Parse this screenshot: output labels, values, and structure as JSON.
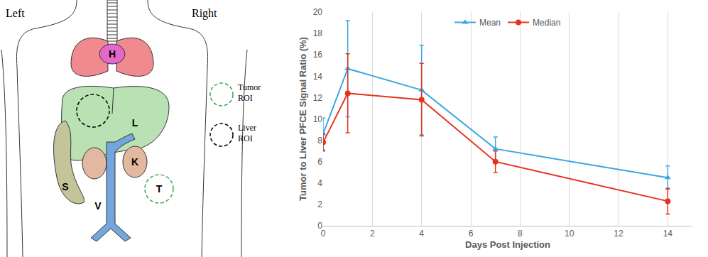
{
  "chart_data": {
    "type": "line",
    "x": [
      0,
      1,
      4,
      7,
      14
    ],
    "xlabel": "Days Post Injection",
    "ylabel": "Tumor to Liver PFCE Signal Ratio (%)",
    "xlim": [
      0,
      15
    ],
    "xticks": [
      0,
      2,
      4,
      6,
      8,
      10,
      12,
      14
    ],
    "ylim": [
      0,
      20
    ],
    "yticks": [
      0,
      2,
      4,
      6,
      8,
      10,
      12,
      14,
      16,
      18,
      20
    ],
    "grid": "x",
    "legend": "top",
    "series": [
      {
        "name": "Mean",
        "color": "#3ba7e0",
        "marker": "triangle",
        "values": [
          8.6,
          14.7,
          12.7,
          7.2,
          4.5
        ],
        "error": [
          1.5,
          4.5,
          4.2,
          1.1,
          1.1
        ]
      },
      {
        "name": "Median",
        "color": "#e8321e",
        "marker": "circle",
        "values": [
          7.8,
          12.4,
          11.8,
          6.0,
          2.3
        ],
        "error": [
          0.8,
          3.7,
          3.4,
          1.0,
          1.2
        ]
      }
    ]
  },
  "diagram": {
    "sides": {
      "left": "Left",
      "right": "Right"
    },
    "organs": {
      "heart": "H",
      "liver": "L",
      "spleen": "S",
      "kidney": "K",
      "vena_cava": "V",
      "tumor": "T"
    },
    "legend": {
      "tumor_roi": "Tumor ROI",
      "liver_roi": "Liver ROI"
    }
  }
}
